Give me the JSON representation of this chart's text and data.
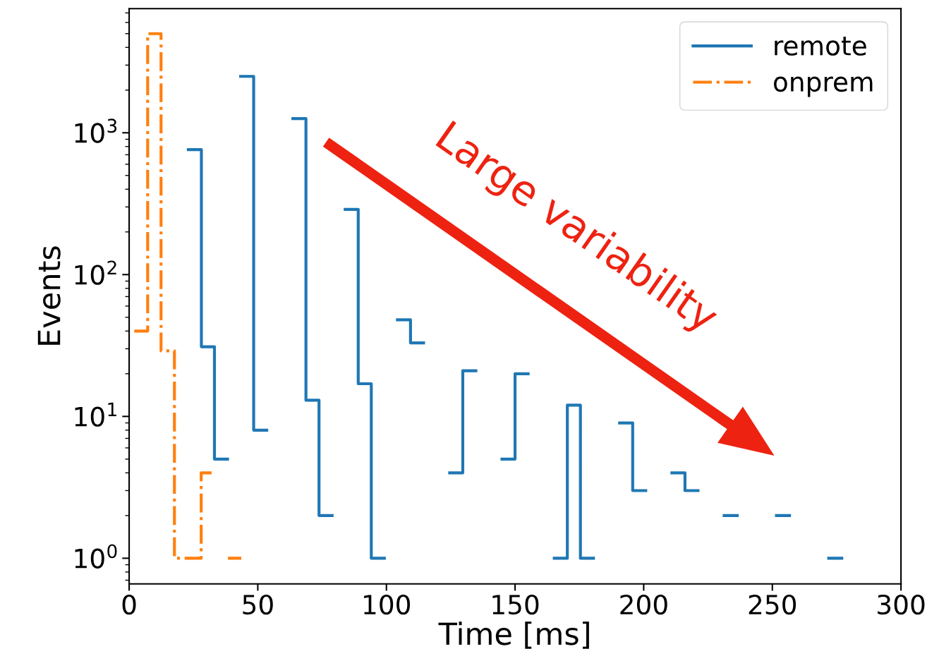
{
  "chart_data": {
    "type": "step",
    "xlabel": "Time [ms]",
    "ylabel": "Events",
    "log": "y",
    "xlim": [
      0,
      300
    ],
    "xticks": [
      0,
      50,
      100,
      150,
      200,
      250,
      300
    ],
    "ylim": [
      0.66,
      7500
    ],
    "yticks": [
      {
        "value": 1,
        "label": "10$^{0}$"
      },
      {
        "value": 10,
        "label": "10$^{1}$"
      },
      {
        "value": 100,
        "label": "10$^{2}$"
      },
      {
        "value": 1000,
        "label": "10$^{3}$"
      }
    ],
    "grid": false,
    "legend": "top right",
    "annotations": [
      "Large variability"
    ],
    "series": [
      {
        "name": "remote",
        "color": "#1f77b4",
        "line_style": "solid",
        "x": [
          23,
          28.08,
          33.16,
          38.24,
          43.32,
          48.4,
          53.48,
          58.56,
          63.64,
          68.72,
          73.8,
          78.88,
          83.96,
          89.04,
          94.12,
          99.2,
          104.28,
          109.36,
          114.44,
          119.52,
          124.6,
          129.68,
          134.76,
          139.84,
          144.92,
          150,
          155.08,
          160.16,
          165.24,
          170.32,
          175.4,
          180.48,
          185.56,
          190.64,
          195.72,
          200.8,
          205.88,
          210.96,
          216.04,
          221.12,
          226.2,
          231.28,
          236.36,
          241.44,
          246.52,
          251.6,
          256.68,
          261.76,
          266.84,
          271.92,
          277
        ],
        "values": [
          760,
          31,
          5,
          null,
          2500,
          8,
          null,
          null,
          1260,
          13,
          2,
          null,
          288,
          17,
          1,
          null,
          48,
          33,
          null,
          null,
          4,
          21,
          null,
          null,
          5,
          20,
          null,
          null,
          1,
          12,
          1,
          null,
          null,
          9,
          3,
          null,
          null,
          4,
          3,
          null,
          null,
          2,
          null,
          null,
          null,
          2,
          null,
          null,
          null,
          1,
          1
        ]
      },
      {
        "name": "onprem",
        "color": "#ff7f0e",
        "line_style": "dashdot",
        "x": [
          2,
          7.2,
          12.4,
          17.6,
          22.8,
          28,
          33.2,
          38.4,
          43.6
        ],
        "values": [
          40,
          5000,
          29,
          1,
          1,
          4,
          null,
          1,
          1
        ]
      }
    ]
  }
}
